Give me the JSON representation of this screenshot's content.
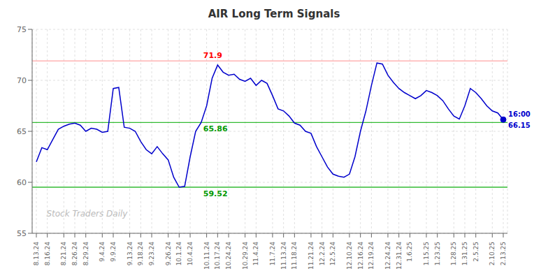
{
  "chart_data": {
    "type": "line",
    "title": "AIR Long Term Signals",
    "categories": [
      "8.13.24",
      null,
      "8.16.24",
      null,
      null,
      "8.21.24",
      null,
      "8.26.24",
      null,
      "8.29.24",
      null,
      null,
      "9.4.24",
      null,
      "9.9.24",
      null,
      null,
      "9.13.24",
      null,
      "9.18.24",
      null,
      "9.23.24",
      null,
      null,
      "9.26.24",
      null,
      "10.1.24",
      null,
      "10.4.24",
      null,
      null,
      "10.11.24",
      null,
      "10.17.24",
      null,
      "10.24.24",
      null,
      null,
      "10.29.24",
      null,
      "11.4.24",
      null,
      null,
      "11.7.24",
      null,
      "11.13.24",
      null,
      "11.18.24",
      null,
      null,
      "11.21.24",
      null,
      "12.2.24",
      null,
      "12.5.24",
      null,
      null,
      "12.10.24",
      null,
      "12.16.24",
      null,
      "12.19.24",
      null,
      null,
      "12.24.24",
      null,
      "12.31.24",
      null,
      "1.6.25",
      null,
      null,
      "1.15.25",
      null,
      "1.23.25",
      null,
      null,
      "1.28.25",
      null,
      "1.31.25",
      null,
      "2.5.25",
      null,
      null,
      "2.10.25",
      null,
      "2.13.25"
    ],
    "values": [
      62.0,
      63.4,
      63.2,
      64.2,
      65.2,
      65.5,
      65.7,
      65.8,
      65.6,
      65.0,
      65.3,
      65.2,
      64.9,
      65.0,
      69.2,
      69.3,
      65.4,
      65.3,
      65.0,
      64.0,
      63.2,
      62.8,
      63.5,
      62.8,
      62.2,
      60.5,
      59.52,
      59.6,
      62.5,
      65.0,
      65.86,
      67.5,
      70.2,
      71.5,
      70.8,
      70.5,
      70.6,
      70.1,
      69.9,
      70.2,
      69.5,
      70.0,
      69.7,
      68.5,
      67.2,
      67.0,
      66.5,
      65.8,
      65.6,
      65.0,
      64.8,
      63.5,
      62.5,
      61.5,
      60.8,
      60.6,
      60.5,
      60.8,
      62.5,
      65.0,
      67.0,
      69.5,
      71.7,
      71.6,
      70.5,
      69.8,
      69.2,
      68.8,
      68.5,
      68.2,
      68.5,
      69.0,
      68.8,
      68.5,
      68.0,
      67.2,
      66.5,
      66.2,
      67.5,
      69.2,
      68.8,
      68.2,
      67.5,
      67.0,
      66.8,
      66.15
    ],
    "color": "#0000cc",
    "ylim": [
      55,
      75
    ],
    "yticks": [
      55,
      60,
      65,
      70,
      75
    ],
    "grid": true,
    "hlines": [
      {
        "value": 71.9,
        "color": "#ffb3b3",
        "label": "71.9",
        "label_color": "red"
      },
      {
        "value": 65.86,
        "color": "#33bb33",
        "label": "65.86",
        "label_color": "#009900"
      },
      {
        "value": 59.52,
        "color": "#33bb33",
        "label": "59.52",
        "label_color": "#009900"
      }
    ],
    "end_point": {
      "color": "#0000cc",
      "labels": [
        "16:00",
        "66.15"
      ]
    },
    "watermark": "Stock Traders Daily"
  }
}
